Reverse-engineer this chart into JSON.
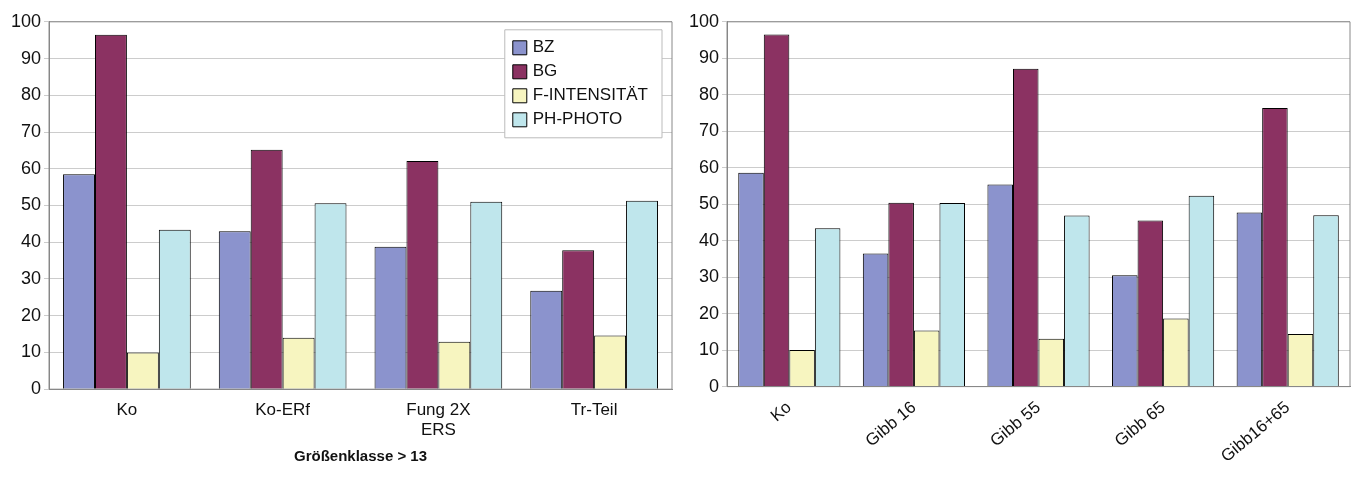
{
  "chart_data": [
    {
      "type": "bar",
      "categories": [
        "Ko",
        "Ko-ERf",
        "Fung 2X ERS",
        "Tr-Teil"
      ],
      "xlabel": "Größenklasse > 13",
      "series": [
        {
          "name": "BZ",
          "color": "#8b93cd",
          "values": [
            58.5,
            43,
            38.8,
            26.8
          ]
        },
        {
          "name": "BG",
          "color": "#8b3262",
          "values": [
            96.5,
            65.2,
            62.1,
            37.8
          ]
        },
        {
          "name": "F-INTENSITÄT",
          "color": "#f7f5c0",
          "values": [
            10,
            14,
            12.9,
            14.6
          ]
        },
        {
          "name": "PH-PHOTO",
          "color": "#bfe6ec",
          "values": [
            43.4,
            50.6,
            51,
            51.3
          ]
        }
      ],
      "ylim": [
        0,
        100
      ],
      "yticks": [
        0,
        10,
        20,
        30,
        40,
        50,
        60,
        70,
        80,
        90,
        100
      ],
      "grid": "y",
      "legend": "top right"
    },
    {
      "type": "bar",
      "categories": [
        "Ko",
        "Gibb 16",
        "Gibb 55",
        "Gibb 65",
        "Gibb16+65"
      ],
      "series": [
        {
          "color": "#8b93cd",
          "values": [
            58.6,
            36.5,
            55.4,
            30.5,
            47.7
          ]
        },
        {
          "color": "#8b3262",
          "values": [
            96.5,
            50.4,
            87.1,
            45.5,
            76.4
          ]
        },
        {
          "color": "#f7f5c0",
          "values": [
            10,
            15.4,
            13.1,
            18.7,
            14.4
          ]
        },
        {
          "color": "#bfe6ec",
          "values": [
            43.4,
            50.3,
            46.9,
            52.3,
            47
          ]
        }
      ],
      "ylim": [
        0,
        100
      ],
      "yticks": [
        0,
        10,
        20,
        30,
        40,
        50,
        60,
        70,
        80,
        90,
        100
      ],
      "grid": "y",
      "legend": false
    }
  ]
}
